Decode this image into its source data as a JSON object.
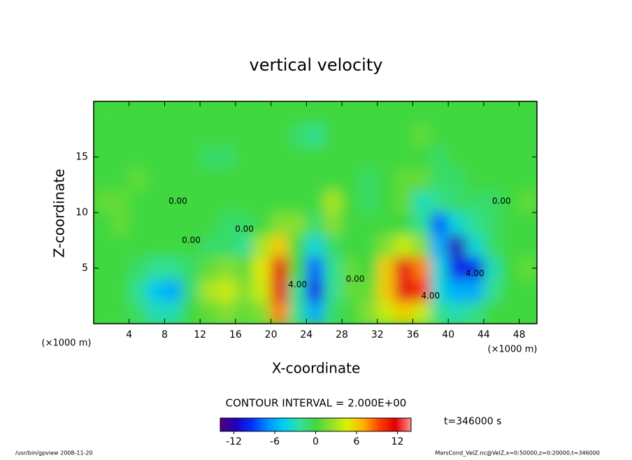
{
  "chart_data": {
    "type": "contour",
    "title": "vertical velocity",
    "x_label": "X-coordinate",
    "y_label": "Z-coordinate",
    "x_unit": "(×1000 m)",
    "y_unit": "(×1000 m)",
    "contour_interval": "CONTOUR INTERVAL = 2.000E+00",
    "time_label": "t=346000 s",
    "footer_left": "/usr/bin/gpview  2008-11-20",
    "footer_right": "MarsCond_VelZ.nc@VelZ,x=0:50000,z=0:20000,t=346000",
    "xlim": [
      0,
      50
    ],
    "ylim": [
      0,
      20
    ],
    "xticks": [
      4,
      8,
      12,
      16,
      20,
      24,
      28,
      32,
      36,
      40,
      44,
      48
    ],
    "yticks": [
      5,
      10,
      15
    ],
    "x": [
      1,
      3,
      5,
      7,
      9,
      11,
      13,
      15,
      17,
      19,
      21,
      23,
      25,
      27,
      29,
      31,
      33,
      35,
      37,
      39,
      41,
      43,
      45,
      47,
      49
    ],
    "y": [
      1,
      3,
      5,
      7,
      9,
      11,
      13,
      15,
      17,
      19
    ],
    "z": [
      [
        0,
        0,
        -1,
        -3,
        -3,
        0,
        1,
        2,
        1,
        2,
        8,
        -2,
        -6,
        -1,
        0,
        2,
        4,
        6,
        4,
        -2,
        -3,
        -2,
        0,
        0,
        0
      ],
      [
        0,
        0,
        -2,
        -5,
        -6,
        -1,
        3,
        4,
        2,
        4,
        12,
        -2,
        -10,
        -2,
        1,
        1,
        6,
        12,
        10,
        -4,
        -6,
        -6,
        -2,
        0,
        0
      ],
      [
        0,
        0,
        -1,
        -2,
        -2,
        -1,
        1,
        2,
        1,
        5,
        12,
        0,
        -8,
        -2,
        1,
        0,
        6,
        12,
        8,
        -4,
        -10,
        -10,
        -3,
        0,
        1
      ],
      [
        0,
        0,
        0,
        0,
        0,
        0,
        -1,
        -1,
        -2,
        3,
        6,
        0,
        -4,
        -1,
        0,
        0,
        2,
        4,
        2,
        -6,
        -12,
        -4,
        -1,
        0,
        0
      ],
      [
        0,
        1,
        0,
        0,
        0,
        0,
        0,
        -1,
        -1,
        0,
        2,
        2,
        -1,
        2,
        0,
        0,
        0,
        0,
        -2,
        -8,
        -4,
        -2,
        -1,
        0,
        0
      ],
      [
        1,
        1,
        0,
        0,
        0,
        0,
        0,
        0,
        0,
        0,
        0,
        0,
        0,
        3,
        0,
        -1,
        0,
        1,
        -3,
        -2,
        -1,
        -1,
        -1,
        0,
        1
      ],
      [
        0,
        0,
        1,
        0,
        0,
        0,
        0,
        0,
        0,
        0,
        0,
        0,
        0,
        0,
        0,
        -1,
        0,
        1,
        1,
        -1,
        -1,
        0,
        0,
        0,
        0
      ],
      [
        0,
        0,
        0,
        0,
        0,
        0,
        -1,
        -1,
        0,
        0,
        0,
        0,
        0,
        0,
        0,
        0,
        0,
        0,
        0,
        -1,
        0,
        0,
        0,
        0,
        0
      ],
      [
        0,
        0,
        0,
        0,
        0,
        0,
        0,
        0,
        0,
        0,
        0,
        -1,
        -2,
        0,
        0,
        0,
        0,
        0,
        1,
        0,
        0,
        0,
        0,
        0,
        0
      ],
      [
        0,
        0,
        0,
        0,
        0,
        0,
        0,
        0,
        0,
        0,
        0,
        0,
        0,
        0,
        0,
        0,
        0,
        0,
        0,
        0,
        0,
        0,
        0,
        0,
        0
      ]
    ],
    "clim": [
      -14,
      14
    ],
    "cticks": [
      -12,
      -6,
      0,
      6,
      12
    ],
    "colormap": [
      "#50007a",
      "#2000c0",
      "#0030ff",
      "#0090ff",
      "#00d0f0",
      "#30e0a0",
      "#40d840",
      "#90e030",
      "#e0f000",
      "#ffb000",
      "#ff4000",
      "#e00000",
      "#ff9090"
    ],
    "annotations": [
      {
        "text": "0.00",
        "x": 9.5,
        "y": 11
      },
      {
        "text": "0.00",
        "x": 11,
        "y": 7.5
      },
      {
        "text": "0.00",
        "x": 17,
        "y": 8.5
      },
      {
        "text": "4.00",
        "x": 23,
        "y": 3.5
      },
      {
        "text": "0.00",
        "x": 29.5,
        "y": 4
      },
      {
        "text": "4.00",
        "x": 38,
        "y": 2.5
      },
      {
        "text": "4.00",
        "x": 43,
        "y": 4.5
      },
      {
        "text": "0.00",
        "x": 46,
        "y": 11
      }
    ]
  }
}
